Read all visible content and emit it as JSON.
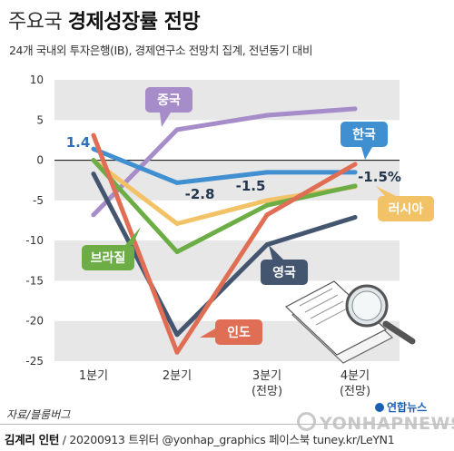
{
  "header": {
    "title_light": "주요국",
    "title_bold": "경제성장률 전망",
    "subtitle": "24개 국내외 투자은행(IB), 경제연구소 전망치 집계, 전년동기 대비"
  },
  "chart_data": {
    "type": "line",
    "categories": [
      [
        "1분기"
      ],
      [
        "2분기"
      ],
      [
        "3분기",
        "(전망)"
      ],
      [
        "4분기",
        "(전망)"
      ]
    ],
    "yticks": [
      10,
      5,
      0,
      -5,
      -10,
      -15,
      -20,
      -25
    ],
    "ylim": [
      -25,
      10
    ],
    "series": [
      {
        "name": "중국",
        "color": "#a68cc8",
        "values": [
          -6.8,
          3.8,
          5.6,
          6.4
        ]
      },
      {
        "name": "한국",
        "color": "#3f8fd1",
        "values": [
          1.4,
          -2.8,
          -1.5,
          -1.5
        ]
      },
      {
        "name": "러시아",
        "color": "#f2c266",
        "values": [
          0.0,
          -7.9,
          -5.0,
          -3.3
        ]
      },
      {
        "name": "브라질",
        "color": "#6cae45",
        "values": [
          0.0,
          -11.4,
          -5.6,
          -3.2
        ]
      },
      {
        "name": "영국",
        "color": "#44556f",
        "values": [
          -1.7,
          -21.7,
          -10.5,
          -7.1
        ]
      },
      {
        "name": "인도",
        "color": "#e06e55",
        "values": [
          3.1,
          -23.9,
          -6.8,
          -0.5
        ]
      }
    ],
    "value_labels": [
      {
        "series": "한국",
        "index": 0,
        "text": "1.4"
      },
      {
        "series": "한국",
        "index": 1,
        "text": "-2.8"
      },
      {
        "series": "한국",
        "index": 2,
        "text": "-1.5"
      },
      {
        "series": "한국",
        "index": 3,
        "text": "-1.5%"
      }
    ],
    "grid": true,
    "bands": true
  },
  "source": "자료/블룸버그",
  "footer": {
    "reporter": "김계리 인턴",
    "date": "20200913",
    "twitter": "트위터 @yonhap_graphics",
    "facebook": "페이스북 tuney.kr/LeYN1"
  },
  "logo": {
    "small": "연합뉴스",
    "main": "YONHAPNEWS"
  }
}
